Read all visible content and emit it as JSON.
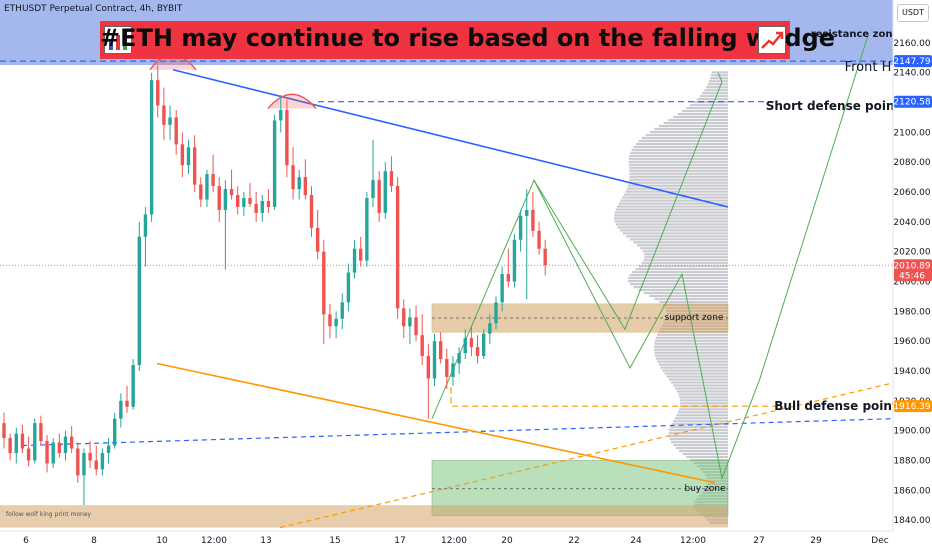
{
  "header": {
    "symbol": "ETHUSDT Perpetual Contract, 4h, BYBIT",
    "currency": "USDT"
  },
  "headline": {
    "text": "#ETH may continue to rise based on the falling wedge",
    "icon_left": "bar-chart-icon",
    "icon_right": "chart-increasing-icon",
    "background": "#ef3340"
  },
  "watermark": "follow wolf king print money",
  "colors": {
    "up": "#26a69a",
    "down": "#ef5350",
    "wedge_upper": "#2962ff",
    "wedge_lower": "#ff9800",
    "support_zone": "#d4a467",
    "buy_zone": "#81c784",
    "projection": "#4caf50",
    "dashed_blue": "#2962ff",
    "dashed_orange": "#ff9800"
  },
  "chart_data": {
    "type": "candlestick",
    "yaxis": {
      "min": 1835,
      "max": 2180,
      "ticks": [
        1840,
        1860,
        1880,
        1900,
        1920,
        1940,
        1960,
        1980,
        2000,
        2020,
        2040,
        2060,
        2080,
        2100,
        2120,
        2140,
        2160
      ]
    },
    "xaxis": {
      "ticks": [
        "6",
        "8",
        "10",
        "12:00",
        "13",
        "15",
        "17",
        "12:00",
        "20",
        "22",
        "24",
        "12:00",
        "27",
        "29",
        "Dec"
      ]
    },
    "price_labels": [
      {
        "value": 2147.79,
        "text": "2147.79",
        "color": "#2962ff"
      },
      {
        "value": 2120.58,
        "text": "2120.58",
        "color": "#2962ff"
      },
      {
        "value": 2010.89,
        "text": "2010.89",
        "sub": "45:46",
        "color": "#ef5350"
      },
      {
        "value": 1916.39,
        "text": "1916.39",
        "color": "#ff9800"
      }
    ],
    "annotations": [
      {
        "text": "resistance zone"
      },
      {
        "text": "Front H"
      },
      {
        "text": "Short defense point"
      },
      {
        "text": "Bull defense point"
      },
      {
        "text": "support zone"
      },
      {
        "text": "buy zone"
      }
    ],
    "levels": {
      "resistance": 2147.79,
      "short_defense": 2120.58,
      "current": 2010.89,
      "bull_defense": 1916.39
    },
    "zones": {
      "support": [
        1966,
        1985
      ],
      "buy": [
        1843,
        1880
      ],
      "bottom": [
        1835,
        1850
      ]
    },
    "candles": [
      {
        "o": 1905,
        "h": 1912,
        "l": 1888,
        "c": 1895
      },
      {
        "o": 1895,
        "h": 1898,
        "l": 1880,
        "c": 1885
      },
      {
        "o": 1885,
        "h": 1902,
        "l": 1878,
        "c": 1898
      },
      {
        "o": 1898,
        "h": 1904,
        "l": 1885,
        "c": 1888
      },
      {
        "o": 1888,
        "h": 1896,
        "l": 1876,
        "c": 1880
      },
      {
        "o": 1880,
        "h": 1908,
        "l": 1878,
        "c": 1905
      },
      {
        "o": 1905,
        "h": 1910,
        "l": 1890,
        "c": 1893
      },
      {
        "o": 1893,
        "h": 1897,
        "l": 1872,
        "c": 1878
      },
      {
        "o": 1878,
        "h": 1895,
        "l": 1875,
        "c": 1892
      },
      {
        "o": 1892,
        "h": 1898,
        "l": 1882,
        "c": 1885
      },
      {
        "o": 1885,
        "h": 1900,
        "l": 1880,
        "c": 1896
      },
      {
        "o": 1896,
        "h": 1903,
        "l": 1885,
        "c": 1888
      },
      {
        "o": 1888,
        "h": 1892,
        "l": 1865,
        "c": 1870
      },
      {
        "o": 1870,
        "h": 1888,
        "l": 1850,
        "c": 1885
      },
      {
        "o": 1885,
        "h": 1893,
        "l": 1875,
        "c": 1880
      },
      {
        "o": 1880,
        "h": 1890,
        "l": 1870,
        "c": 1874
      },
      {
        "o": 1874,
        "h": 1888,
        "l": 1870,
        "c": 1885
      },
      {
        "o": 1885,
        "h": 1895,
        "l": 1878,
        "c": 1890
      },
      {
        "o": 1890,
        "h": 1912,
        "l": 1888,
        "c": 1908
      },
      {
        "o": 1908,
        "h": 1925,
        "l": 1902,
        "c": 1920
      },
      {
        "o": 1920,
        "h": 1930,
        "l": 1912,
        "c": 1916
      },
      {
        "o": 1916,
        "h": 1948,
        "l": 1914,
        "c": 1944
      },
      {
        "o": 1944,
        "h": 2040,
        "l": 1940,
        "c": 2030
      },
      {
        "o": 2030,
        "h": 2050,
        "l": 2010,
        "c": 2045
      },
      {
        "o": 2045,
        "h": 2140,
        "l": 2040,
        "c": 2135
      },
      {
        "o": 2135,
        "h": 2145,
        "l": 2110,
        "c": 2118
      },
      {
        "o": 2118,
        "h": 2130,
        "l": 2095,
        "c": 2105
      },
      {
        "o": 2105,
        "h": 2118,
        "l": 2095,
        "c": 2110
      },
      {
        "o": 2110,
        "h": 2115,
        "l": 2085,
        "c": 2092
      },
      {
        "o": 2092,
        "h": 2100,
        "l": 2070,
        "c": 2078
      },
      {
        "o": 2078,
        "h": 2095,
        "l": 2072,
        "c": 2090
      },
      {
        "o": 2090,
        "h": 2098,
        "l": 2060,
        "c": 2065
      },
      {
        "o": 2065,
        "h": 2070,
        "l": 2050,
        "c": 2055
      },
      {
        "o": 2055,
        "h": 2075,
        "l": 2050,
        "c": 2072
      },
      {
        "o": 2072,
        "h": 2085,
        "l": 2060,
        "c": 2064
      },
      {
        "o": 2064,
        "h": 2070,
        "l": 2040,
        "c": 2048
      },
      {
        "o": 2048,
        "h": 2068,
        "l": 2008,
        "c": 2062
      },
      {
        "o": 2062,
        "h": 2075,
        "l": 2055,
        "c": 2058
      },
      {
        "o": 2058,
        "h": 2064,
        "l": 2045,
        "c": 2050
      },
      {
        "o": 2050,
        "h": 2060,
        "l": 2044,
        "c": 2056
      },
      {
        "o": 2056,
        "h": 2066,
        "l": 2050,
        "c": 2052
      },
      {
        "o": 2052,
        "h": 2060,
        "l": 2040,
        "c": 2046
      },
      {
        "o": 2046,
        "h": 2058,
        "l": 2040,
        "c": 2054
      },
      {
        "o": 2054,
        "h": 2062,
        "l": 2046,
        "c": 2050
      },
      {
        "o": 2050,
        "h": 2112,
        "l": 2048,
        "c": 2108
      },
      {
        "o": 2108,
        "h": 2125,
        "l": 2100,
        "c": 2115
      },
      {
        "o": 2115,
        "h": 2122,
        "l": 2070,
        "c": 2078
      },
      {
        "o": 2078,
        "h": 2090,
        "l": 2055,
        "c": 2062
      },
      {
        "o": 2062,
        "h": 2075,
        "l": 2055,
        "c": 2070
      },
      {
        "o": 2070,
        "h": 2082,
        "l": 2055,
        "c": 2058
      },
      {
        "o": 2058,
        "h": 2064,
        "l": 2030,
        "c": 2036
      },
      {
        "o": 2036,
        "h": 2048,
        "l": 2015,
        "c": 2020
      },
      {
        "o": 2020,
        "h": 2028,
        "l": 1958,
        "c": 1978
      },
      {
        "o": 1978,
        "h": 1985,
        "l": 1962,
        "c": 1970
      },
      {
        "o": 1970,
        "h": 1980,
        "l": 1962,
        "c": 1975
      },
      {
        "o": 1975,
        "h": 1992,
        "l": 1968,
        "c": 1986
      },
      {
        "o": 1986,
        "h": 2012,
        "l": 1980,
        "c": 2006
      },
      {
        "o": 2006,
        "h": 2028,
        "l": 2002,
        "c": 2022
      },
      {
        "o": 2022,
        "h": 2030,
        "l": 2010,
        "c": 2014
      },
      {
        "o": 2014,
        "h": 2060,
        "l": 2010,
        "c": 2056
      },
      {
        "o": 2056,
        "h": 2095,
        "l": 2050,
        "c": 2068
      },
      {
        "o": 2068,
        "h": 2074,
        "l": 2040,
        "c": 2046
      },
      {
        "o": 2046,
        "h": 2080,
        "l": 2042,
        "c": 2074
      },
      {
        "o": 2074,
        "h": 2084,
        "l": 2060,
        "c": 2064
      },
      {
        "o": 2064,
        "h": 2070,
        "l": 1975,
        "c": 1982
      },
      {
        "o": 1982,
        "h": 1988,
        "l": 1962,
        "c": 1970
      },
      {
        "o": 1970,
        "h": 1982,
        "l": 1958,
        "c": 1976
      },
      {
        "o": 1976,
        "h": 1984,
        "l": 1960,
        "c": 1964
      },
      {
        "o": 1964,
        "h": 1978,
        "l": 1944,
        "c": 1950
      },
      {
        "o": 1950,
        "h": 1958,
        "l": 1908,
        "c": 1935
      },
      {
        "o": 1935,
        "h": 1965,
        "l": 1930,
        "c": 1960
      },
      {
        "o": 1960,
        "h": 1966,
        "l": 1945,
        "c": 1948
      },
      {
        "o": 1948,
        "h": 1955,
        "l": 1928,
        "c": 1936
      },
      {
        "o": 1936,
        "h": 1950,
        "l": 1930,
        "c": 1945
      },
      {
        "o": 1945,
        "h": 1956,
        "l": 1938,
        "c": 1952
      },
      {
        "o": 1952,
        "h": 1968,
        "l": 1948,
        "c": 1962
      },
      {
        "o": 1962,
        "h": 1970,
        "l": 1950,
        "c": 1956
      },
      {
        "o": 1956,
        "h": 1964,
        "l": 1945,
        "c": 1950
      },
      {
        "o": 1950,
        "h": 1968,
        "l": 1948,
        "c": 1965
      },
      {
        "o": 1965,
        "h": 1978,
        "l": 1958,
        "c": 1972
      },
      {
        "o": 1972,
        "h": 1990,
        "l": 1968,
        "c": 1986
      },
      {
        "o": 1986,
        "h": 2010,
        "l": 1980,
        "c": 2005
      },
      {
        "o": 2005,
        "h": 2022,
        "l": 1996,
        "c": 2000
      },
      {
        "o": 2000,
        "h": 2032,
        "l": 1996,
        "c": 2028
      },
      {
        "o": 2028,
        "h": 2048,
        "l": 2020,
        "c": 2044
      },
      {
        "o": 2044,
        "h": 2062,
        "l": 1988,
        "c": 2048
      },
      {
        "o": 2048,
        "h": 2060,
        "l": 2030,
        "c": 2034
      },
      {
        "o": 2034,
        "h": 2040,
        "l": 2018,
        "c": 2022
      },
      {
        "o": 2022,
        "h": 2028,
        "l": 2004,
        "c": 2011
      }
    ]
  }
}
